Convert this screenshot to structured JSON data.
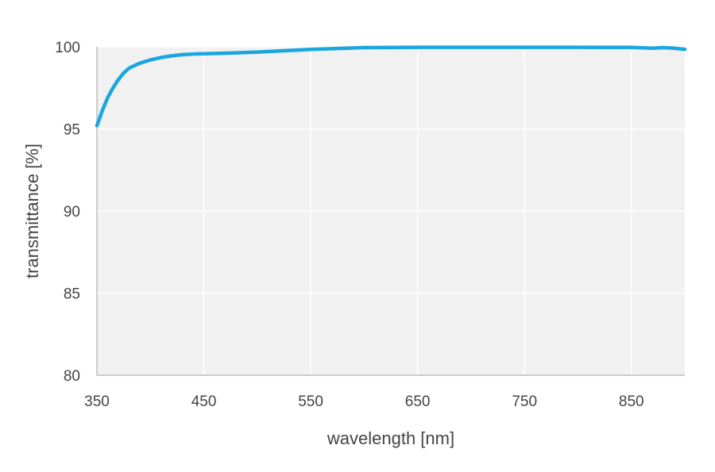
{
  "chart_data": {
    "type": "line",
    "title": "",
    "xlabel": "wavelength [nm]",
    "ylabel": "transmittance [%]",
    "xlim": [
      350,
      900
    ],
    "ylim": [
      80,
      100
    ],
    "x_ticks": [
      350,
      450,
      550,
      650,
      750,
      850
    ],
    "y_ticks": [
      80,
      85,
      90,
      95,
      100
    ],
    "grid": true,
    "legend": "none",
    "colors": {
      "line": "#1aa7e0",
      "plot_background": "#f1f1f1",
      "grid": "#ffffff",
      "axis": "#bdbdbd",
      "text": "#444444"
    },
    "series": [
      {
        "x": [
          350,
          355,
          360,
          365,
          370,
          375,
          380,
          390,
          400,
          410,
          420,
          430,
          440,
          450,
          475,
          500,
          525,
          550,
          575,
          600,
          650,
          700,
          750,
          800,
          850,
          870,
          880,
          890,
          900
        ],
        "y": [
          95.2,
          96.1,
          96.9,
          97.5,
          98.0,
          98.4,
          98.7,
          99.0,
          99.2,
          99.35,
          99.45,
          99.52,
          99.56,
          99.58,
          99.62,
          99.68,
          99.76,
          99.84,
          99.9,
          99.95,
          99.97,
          99.97,
          99.97,
          99.97,
          99.96,
          99.92,
          99.95,
          99.92,
          99.85
        ]
      }
    ]
  }
}
